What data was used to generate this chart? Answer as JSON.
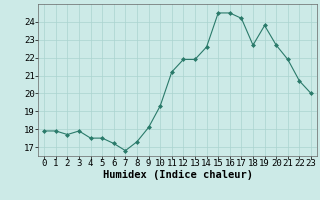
{
  "x": [
    0,
    1,
    2,
    3,
    4,
    5,
    6,
    7,
    8,
    9,
    10,
    11,
    12,
    13,
    14,
    15,
    16,
    17,
    18,
    19,
    20,
    21,
    22,
    23
  ],
  "y": [
    17.9,
    17.9,
    17.7,
    17.9,
    17.5,
    17.5,
    17.2,
    16.8,
    17.3,
    18.1,
    19.3,
    21.2,
    21.9,
    21.9,
    22.6,
    24.5,
    24.5,
    24.2,
    22.7,
    23.8,
    22.7,
    21.9,
    20.7,
    20.0
  ],
  "xlabel": "Humidex (Indice chaleur)",
  "ylim": [
    16.5,
    25.0
  ],
  "xlim": [
    -0.5,
    23.5
  ],
  "yticks": [
    17,
    18,
    19,
    20,
    21,
    22,
    23,
    24
  ],
  "xticks": [
    0,
    1,
    2,
    3,
    4,
    5,
    6,
    7,
    8,
    9,
    10,
    11,
    12,
    13,
    14,
    15,
    16,
    17,
    18,
    19,
    20,
    21,
    22,
    23
  ],
  "line_color": "#2a7a6a",
  "marker_color": "#2a7a6a",
  "bg_color": "#cceae7",
  "grid_color": "#aad4d0",
  "xlabel_fontsize": 7.5,
  "tick_fontsize": 6.5
}
